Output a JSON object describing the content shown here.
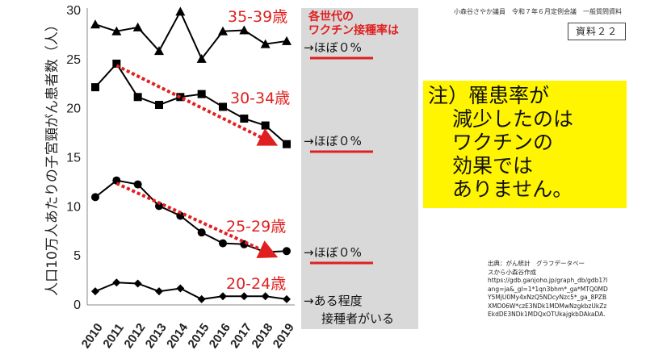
{
  "header_note": "小森谷さやか議員　令和７年６月定例会議　一般質問資料",
  "doc_number": "資料２２",
  "note": {
    "lines": [
      "注）罹患率が",
      "減少したのは",
      "ワクチンの",
      "効果では",
      "ありません。"
    ]
  },
  "source": {
    "lines": [
      "出典：がん統計　グラフデータベー",
      "スから小森谷作成",
      "https://gdb.ganjoho.jp/graph_db/gdb1?l",
      "ang=ja&_gl=1*1qn3bhm*_ga*MTQ0MD",
      "Y5MjU0My4xNzQ5NDcyNzc5*_ga_8PZB",
      "XMD06W*czE3NDk1MDMwNzgkbzUkZz",
      "EkdDE3NDk1MDQxOTUkajgkbDAkaDA."
    ]
  },
  "vaccination_panel": {
    "heading_lines": [
      "各世代の",
      "ワクチン接種率は"
    ],
    "statuses": [
      "→ほぼ０%",
      "→ほぼ０%",
      "→ほぼ０%",
      "→ある程度",
      "接種者がいる"
    ]
  },
  "colors": {
    "series_line": "#000000",
    "trend_arrow": "#e02020",
    "age_label": "#e02020",
    "note_bg": "#fff500",
    "panel_bg": "#d9d9d9"
  },
  "chart_data": {
    "type": "line",
    "ylabel": "人口10万人あたりの子宮頸がん患者数（人）",
    "xlabel": "",
    "ylim": [
      0,
      30
    ],
    "yticks": [
      0,
      5,
      10,
      15,
      20,
      25,
      30
    ],
    "grid": false,
    "categories": [
      "2010",
      "2011",
      "2012",
      "2013",
      "2014",
      "2015",
      "2016",
      "2017",
      "2018",
      "2019"
    ],
    "series": [
      {
        "name": "35-39歳",
        "marker": "triangle",
        "values": [
          28.5,
          27.8,
          28.2,
          25.8,
          29.8,
          25.0,
          27.8,
          27.9,
          26.5,
          26.8
        ]
      },
      {
        "name": "30-34歳",
        "marker": "square",
        "values": [
          22.1,
          24.5,
          21.1,
          20.3,
          21.1,
          21.4,
          20.1,
          18.9,
          18.2,
          16.3
        ]
      },
      {
        "name": "25-29歳",
        "marker": "circle",
        "values": [
          10.9,
          12.6,
          12.2,
          10.0,
          9.0,
          7.3,
          6.2,
          6.1,
          5.3,
          5.4
        ]
      },
      {
        "name": "20-24歳",
        "marker": "diamond",
        "values": [
          1.3,
          2.2,
          2.1,
          1.3,
          1.6,
          0.5,
          0.8,
          0.8,
          0.8,
          0.5
        ]
      }
    ],
    "trend_arrows": [
      {
        "series": "30-34歳",
        "from": [
          "2011",
          24.3
        ],
        "to": [
          "2019",
          16.6
        ]
      },
      {
        "series": "25-29歳",
        "from": [
          "2011",
          12.3
        ],
        "to": [
          "2019",
          5.2
        ]
      }
    ]
  }
}
